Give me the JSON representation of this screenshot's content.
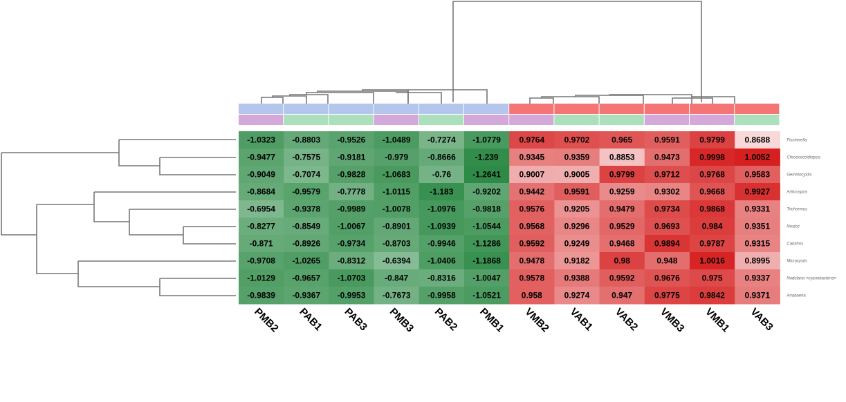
{
  "chart_data": {
    "type": "heatmap",
    "title": "",
    "xlabel": "",
    "ylabel": "",
    "columns": [
      "PMB2",
      "PAB1",
      "PAB3",
      "PMB3",
      "PAB2",
      "PMB1",
      "VMB2",
      "VAB1",
      "VAB2",
      "VMB3",
      "VMB1",
      "VAB3"
    ],
    "rows": [
      "Fischerella",
      "Chroococcidiopsis",
      "Geminocystis",
      "Arthrospira",
      "Trichormus",
      "Nostoc",
      "Calothrix",
      "Microcystis",
      "Nodularia <cyanobacteria>",
      "Anabaena"
    ],
    "values": [
      [
        -1.0323,
        -0.8803,
        -0.9526,
        -1.0489,
        -0.7274,
        -1.0779,
        0.9764,
        0.9702,
        0.965,
        0.9591,
        0.9799,
        0.8688
      ],
      [
        -0.9477,
        -0.7575,
        -0.9181,
        -0.979,
        -0.8666,
        -1.239,
        0.9345,
        0.9359,
        0.8853,
        0.9473,
        0.9998,
        1.0052
      ],
      [
        -0.9049,
        -0.7074,
        -0.9828,
        -1.0683,
        -0.76,
        -1.2641,
        0.9007,
        0.9005,
        0.9799,
        0.9712,
        0.9768,
        0.9583
      ],
      [
        -0.8684,
        -0.9579,
        -0.7778,
        -1.0115,
        -1.183,
        -0.9202,
        0.9442,
        0.9591,
        0.9259,
        0.9302,
        0.9668,
        0.9927
      ],
      [
        -0.6954,
        -0.9378,
        -0.9989,
        -1.0078,
        -1.0976,
        -0.9818,
        0.9576,
        0.9205,
        0.9479,
        0.9734,
        0.9868,
        0.9331
      ],
      [
        -0.8277,
        -0.8549,
        -1.0067,
        -0.8901,
        -1.0939,
        -1.0544,
        0.9568,
        0.9296,
        0.9529,
        0.9693,
        0.984,
        0.9351
      ],
      [
        -0.871,
        -0.8926,
        -0.9734,
        -0.8703,
        -0.9946,
        -1.1286,
        0.9592,
        0.9249,
        0.9468,
        0.9894,
        0.9787,
        0.9315
      ],
      [
        -0.9708,
        -1.0265,
        -0.8312,
        -0.6394,
        -1.0406,
        -1.1868,
        0.9478,
        0.9182,
        0.98,
        0.948,
        1.0016,
        0.8995
      ],
      [
        -1.0129,
        -0.9657,
        -1.0703,
        -0.847,
        -0.8316,
        -1.0047,
        0.9578,
        0.9388,
        0.9592,
        0.9676,
        0.975,
        0.9337
      ],
      [
        -0.9839,
        -0.9367,
        -0.9953,
        -0.7673,
        -0.9958,
        -1.0521,
        0.958,
        0.9274,
        0.947,
        0.9775,
        0.9842,
        0.9371
      ]
    ],
    "color_scale": {
      "negative": "#2e8b47",
      "positive": "#d62020",
      "min": -1.2641,
      "max": 1.0052
    },
    "annotation_rows": [
      {
        "colors": [
          "#b4c6ec",
          "#b4c6ec",
          "#b4c6ec",
          "#b4c6ec",
          "#b4c6ec",
          "#b4c6ec",
          "#f57575",
          "#f57575",
          "#f57575",
          "#f57575",
          "#f57575",
          "#f57575"
        ]
      },
      {
        "colors": [
          "#d4a8d8",
          "#acdfbb",
          "#acdfbb",
          "#d4a8d8",
          "#acdfbb",
          "#d4a8d8",
          "#d4a8d8",
          "#acdfbb",
          "#acdfbb",
          "#d4a8d8",
          "#d4a8d8",
          "#acdfbb"
        ]
      }
    ],
    "legend": "none",
    "grid": false
  }
}
